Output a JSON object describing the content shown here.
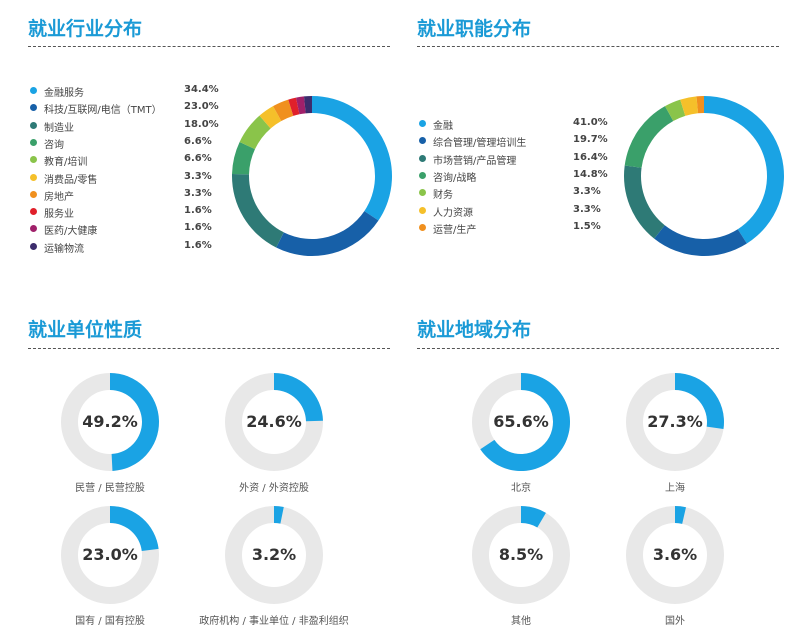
{
  "sections": {
    "industry": {
      "title": "就业行业分布"
    },
    "function": {
      "title": "就业职能分布"
    },
    "org": {
      "title": "就业单位性质"
    },
    "region": {
      "title": "就业地域分布"
    }
  },
  "chart_data": [
    {
      "type": "pie",
      "title": "就业行业分布",
      "donut": true,
      "categories": [
        "金融服务",
        "科技/互联网/电信（TMT）",
        "制造业",
        "咨询",
        "教育/培训",
        "消费品/零售",
        "房地产",
        "服务业",
        "医药/大健康",
        "运输物流"
      ],
      "values": [
        34.4,
        23.0,
        18.0,
        6.6,
        6.6,
        3.3,
        3.3,
        1.6,
        1.6,
        1.6
      ],
      "labels": [
        "34.4%",
        "23.0%",
        "18.0%",
        "6.6%",
        "6.6%",
        "3.3%",
        "3.3%",
        "1.6%",
        "1.6%",
        "1.6%"
      ],
      "colors": [
        "#1aa3e4",
        "#1760a8",
        "#2e7a76",
        "#3aa06a",
        "#8ac44a",
        "#f5c02a",
        "#f0901e",
        "#e0202a",
        "#a0206a",
        "#3c2c6c"
      ],
      "legend": "left"
    },
    {
      "type": "pie",
      "title": "就业职能分布",
      "donut": true,
      "categories": [
        "金融",
        "综合管理/管理培训生",
        "市场营销/产品管理",
        "咨询/战略",
        "财务",
        "人力资源",
        "运营/生产"
      ],
      "values": [
        41.0,
        19.7,
        16.4,
        14.8,
        3.3,
        3.3,
        1.5
      ],
      "labels": [
        "41.0%",
        "19.7%",
        "16.4%",
        "14.8%",
        "3.3%",
        "3.3%",
        "1.5%"
      ],
      "colors": [
        "#1aa3e4",
        "#1760a8",
        "#2e7a76",
        "#3aa06a",
        "#8ac44a",
        "#f5c02a",
        "#f0901e"
      ],
      "legend": "left"
    },
    {
      "type": "pie",
      "title": "就业单位性质",
      "donut": true,
      "items": [
        {
          "label": "民营 / 民营控股",
          "value": 49.2,
          "text": "49.2%"
        },
        {
          "label": "外资 / 外资控股",
          "value": 24.6,
          "text": "24.6%"
        },
        {
          "label": "国有 / 国有控股",
          "value": 23.0,
          "text": "23.0%"
        },
        {
          "label": "政府机构 / 事业单位 / 非盈利组织",
          "value": 3.2,
          "text": "3.2%"
        }
      ],
      "colors": [
        "#1aa3e4",
        "#e8e8e8"
      ]
    },
    {
      "type": "pie",
      "title": "就业地域分布",
      "donut": true,
      "items": [
        {
          "label": "北京",
          "value": 65.6,
          "text": "65.6%"
        },
        {
          "label": "上海",
          "value": 27.3,
          "text": "27.3%"
        },
        {
          "label": "其他",
          "value": 8.5,
          "text": "8.5%"
        },
        {
          "label": "国外",
          "value": 3.6,
          "text": "3.6%"
        }
      ],
      "colors": [
        "#1aa3e4",
        "#e8e8e8"
      ]
    }
  ]
}
